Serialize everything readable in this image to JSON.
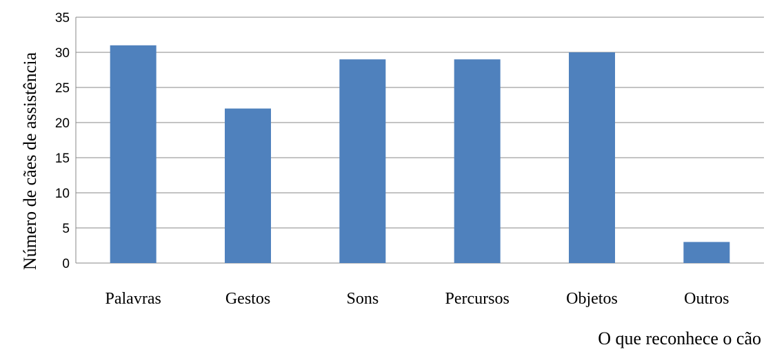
{
  "chart_data": {
    "type": "bar",
    "categories": [
      "Palavras",
      "Gestos",
      "Sons",
      "Percursos",
      "Objetos",
      "Outros"
    ],
    "values": [
      31,
      22,
      29,
      29,
      30,
      3
    ],
    "title": "",
    "xlabel": "O que reconhece o cão",
    "ylabel": "Número de cães de assistência",
    "ylim": [
      0,
      35
    ],
    "yticks": [
      0,
      5,
      10,
      15,
      20,
      25,
      30,
      35
    ],
    "grid": true,
    "bar_color": "#4f81bd",
    "legend": "none"
  }
}
